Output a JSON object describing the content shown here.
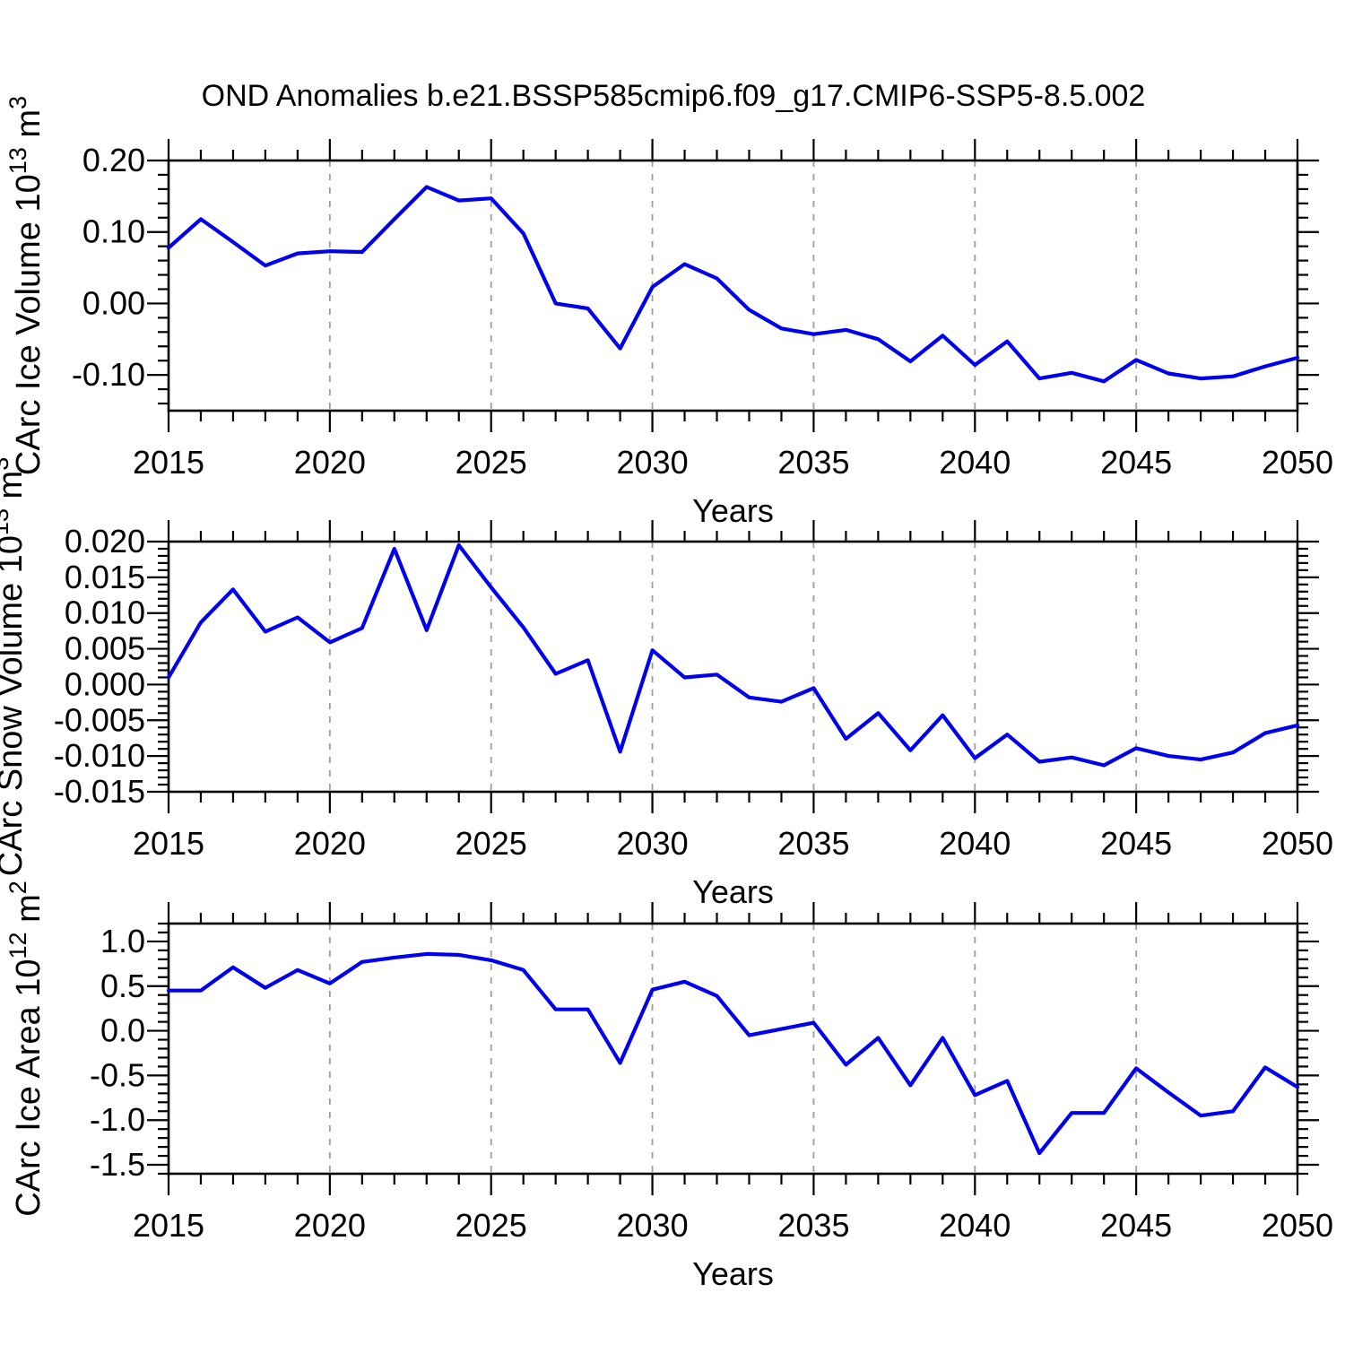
{
  "title": "OND Anomalies b.e21.BSSP585cmip6.f09_g17.CMIP6-SSP5-8.5.002",
  "style": {
    "line_color": "#0000ee",
    "grid_color": "#9e9e9e",
    "axis_color": "#000000"
  },
  "chart_data": [
    {
      "id": "ice-volume",
      "type": "line",
      "xlabel": "Years",
      "ylabel_parts": [
        {
          "text": "CArc Ice Volume 10",
          "sup": false
        },
        {
          "text": "13",
          "sup": true
        },
        {
          "text": " m",
          "sup": false
        },
        {
          "text": "3",
          "sup": true
        }
      ],
      "x": [
        2015,
        2016,
        2017,
        2018,
        2019,
        2020,
        2021,
        2022,
        2023,
        2024,
        2025,
        2026,
        2027,
        2028,
        2029,
        2030,
        2031,
        2032,
        2033,
        2034,
        2035,
        2036,
        2037,
        2038,
        2039,
        2040,
        2041,
        2042,
        2043,
        2044,
        2045,
        2046,
        2047,
        2048,
        2049,
        2050
      ],
      "values": [
        0.078,
        0.118,
        0.086,
        0.053,
        0.07,
        0.073,
        0.072,
        0.118,
        0.163,
        0.144,
        0.147,
        0.098,
        0.0,
        -0.007,
        -0.063,
        0.023,
        0.055,
        0.035,
        -0.009,
        -0.035,
        -0.043,
        -0.037,
        -0.05,
        -0.081,
        -0.045,
        -0.086,
        -0.053,
        -0.105,
        -0.097,
        -0.109,
        -0.079,
        -0.098,
        -0.105,
        -0.102,
        -0.088,
        -0.076
      ],
      "xlim": [
        2015,
        2050
      ],
      "ylim": [
        -0.15,
        0.2
      ],
      "xticks_major": [
        2015,
        2020,
        2025,
        2030,
        2035,
        2040,
        2045,
        2050
      ],
      "xtick_labels": [
        "2015",
        "2020",
        "2025",
        "2030",
        "2035",
        "2040",
        "2045",
        "2050"
      ],
      "x_minor_step": 1,
      "yticks_major": [
        0.2,
        0.1,
        0.0,
        -0.1
      ],
      "ytick_labels": [
        "0.20",
        "0.10",
        "0.00",
        "-0.10"
      ],
      "y_minor_step": 0.02,
      "grid_x": [
        2020,
        2025,
        2030,
        2035,
        2040,
        2045
      ],
      "legend": "none"
    },
    {
      "id": "snow-volume",
      "type": "line",
      "xlabel": "Years",
      "ylabel_parts": [
        {
          "text": "CArc Snow Volume 10",
          "sup": false
        },
        {
          "text": "13",
          "sup": true
        },
        {
          "text": " m",
          "sup": false
        },
        {
          "text": "3",
          "sup": true
        }
      ],
      "x": [
        2015,
        2016,
        2017,
        2018,
        2019,
        2020,
        2021,
        2022,
        2023,
        2024,
        2025,
        2026,
        2027,
        2028,
        2029,
        2030,
        2031,
        2032,
        2033,
        2034,
        2035,
        2036,
        2037,
        2038,
        2039,
        2040,
        2041,
        2042,
        2043,
        2044,
        2045,
        2046,
        2047,
        2048,
        2049,
        2050
      ],
      "values": [
        0.001,
        0.0087,
        0.0133,
        0.0074,
        0.0094,
        0.0059,
        0.0079,
        0.019,
        0.0076,
        0.0195,
        0.0136,
        0.008,
        0.0015,
        0.0034,
        -0.0094,
        0.0048,
        0.001,
        0.0014,
        -0.0018,
        -0.0024,
        -0.0005,
        -0.0076,
        -0.004,
        -0.0092,
        -0.0043,
        -0.0103,
        -0.007,
        -0.0108,
        -0.0102,
        -0.0113,
        -0.0089,
        -0.01,
        -0.0105,
        -0.0095,
        -0.0068,
        -0.0057
      ],
      "xlim": [
        2015,
        2050
      ],
      "ylim": [
        -0.015,
        0.02
      ],
      "xticks_major": [
        2015,
        2020,
        2025,
        2030,
        2035,
        2040,
        2045,
        2050
      ],
      "xtick_labels": [
        "2015",
        "2020",
        "2025",
        "2030",
        "2035",
        "2040",
        "2045",
        "2050"
      ],
      "x_minor_step": 1,
      "yticks_major": [
        0.02,
        0.015,
        0.01,
        0.005,
        0.0,
        -0.005,
        -0.01,
        -0.015
      ],
      "ytick_labels": [
        "0.020",
        "0.015",
        "0.010",
        "0.005",
        "0.000",
        "-0.005",
        "-0.010",
        "-0.015"
      ],
      "y_minor_step": 0.001,
      "grid_x": [
        2020,
        2025,
        2030,
        2035,
        2040,
        2045
      ],
      "legend": "none"
    },
    {
      "id": "ice-area",
      "type": "line",
      "xlabel": "Years",
      "ylabel_parts": [
        {
          "text": "CArc Ice Area 10",
          "sup": false
        },
        {
          "text": "12",
          "sup": true
        },
        {
          "text": " m",
          "sup": false
        },
        {
          "text": "2",
          "sup": true
        }
      ],
      "x": [
        2015,
        2016,
        2017,
        2018,
        2019,
        2020,
        2021,
        2022,
        2023,
        2024,
        2025,
        2026,
        2027,
        2028,
        2029,
        2030,
        2031,
        2032,
        2033,
        2034,
        2035,
        2036,
        2037,
        2038,
        2039,
        2040,
        2041,
        2042,
        2043,
        2044,
        2045,
        2046,
        2047,
        2048,
        2049,
        2050
      ],
      "values": [
        0.45,
        0.45,
        0.71,
        0.48,
        0.68,
        0.53,
        0.77,
        0.82,
        0.86,
        0.85,
        0.79,
        0.68,
        0.24,
        0.24,
        -0.36,
        0.46,
        0.55,
        0.39,
        -0.05,
        0.02,
        0.09,
        -0.38,
        -0.08,
        -0.61,
        -0.08,
        -0.72,
        -0.56,
        -1.37,
        -0.92,
        -0.92,
        -0.42,
        -0.69,
        -0.95,
        -0.9,
        -0.41,
        -0.63
      ],
      "xlim": [
        2015,
        2050
      ],
      "ylim": [
        -1.6,
        1.2
      ],
      "xticks_major": [
        2015,
        2020,
        2025,
        2030,
        2035,
        2040,
        2045,
        2050
      ],
      "xtick_labels": [
        "2015",
        "2020",
        "2025",
        "2030",
        "2035",
        "2040",
        "2045",
        "2050"
      ],
      "x_minor_step": 1,
      "yticks_major": [
        1.0,
        0.5,
        0.0,
        -0.5,
        -1.0,
        -1.5
      ],
      "ytick_labels": [
        "1.0",
        "0.5",
        "0.0",
        "-0.5",
        "-1.0",
        "-1.5"
      ],
      "y_minor_step": 0.1,
      "grid_x": [
        2020,
        2025,
        2030,
        2035,
        2040,
        2045
      ],
      "legend": "none"
    }
  ]
}
